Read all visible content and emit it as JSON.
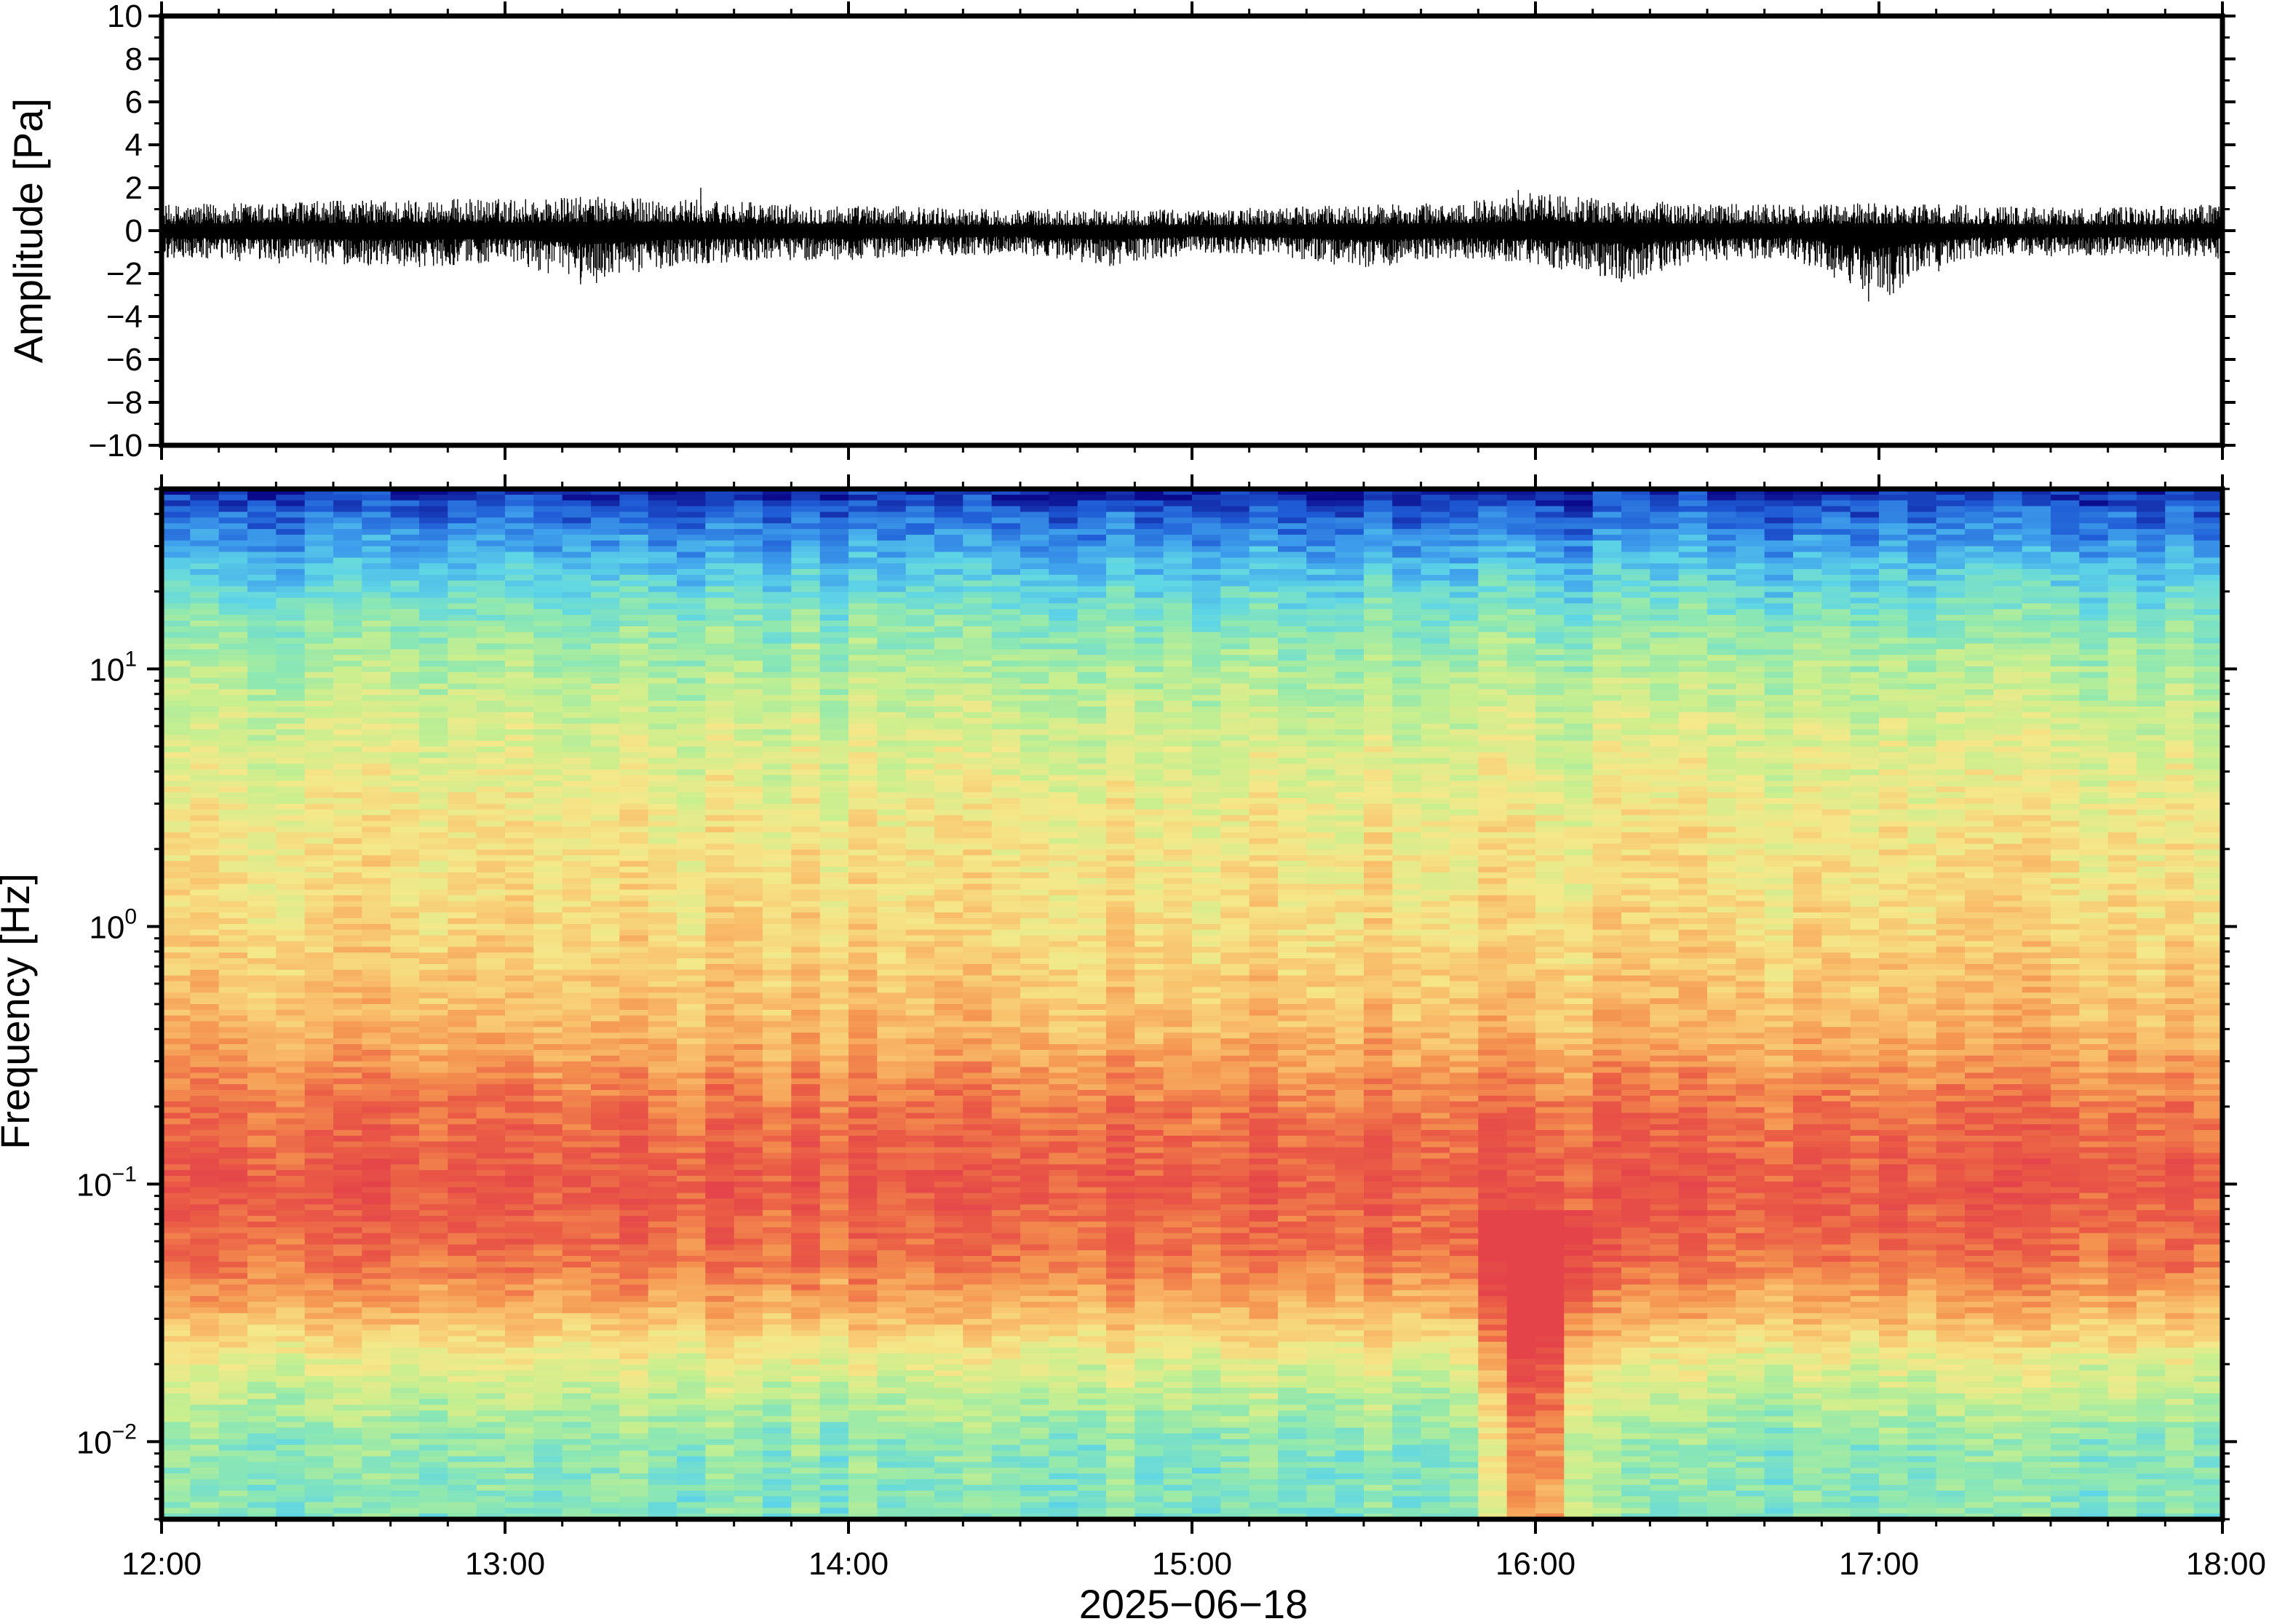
{
  "chart_data": [
    {
      "type": "line",
      "panel": "waveform",
      "ylabel": "Amplitude [Pa]",
      "xlabel": "",
      "ylim": [
        -10,
        10
      ],
      "y_ticks": [
        10,
        8,
        6,
        4,
        2,
        0,
        -2,
        -4,
        -6,
        -8,
        -10
      ],
      "y_tick_labels": [
        "10",
        "8",
        "6",
        "4",
        "2",
        "0",
        "−2",
        "−4",
        "−6",
        "−8",
        "−10"
      ],
      "xlim": [
        "12:00",
        "18:00"
      ],
      "series": [
        {
          "color": "#000000",
          "x_hours": [
            12.0,
            12.25,
            12.5,
            12.75,
            13.0,
            13.25,
            13.5,
            13.75,
            14.0,
            14.25,
            14.5,
            14.75,
            15.0,
            15.25,
            15.5,
            15.75,
            16.0,
            16.25,
            16.5,
            16.75,
            17.0,
            17.25,
            17.5,
            17.75,
            18.0
          ],
          "envelope_max": [
            1.2,
            1.3,
            1.4,
            1.5,
            1.5,
            1.6,
            1.5,
            1.3,
            1.2,
            1.1,
            1.0,
            1.0,
            1.0,
            1.1,
            1.2,
            1.3,
            1.8,
            1.4,
            1.3,
            1.2,
            1.3,
            1.2,
            1.1,
            1.1,
            1.3
          ],
          "envelope_min": [
            -1.3,
            -1.5,
            -1.6,
            -1.7,
            -1.5,
            -2.5,
            -1.6,
            -1.4,
            -1.4,
            -1.2,
            -1.1,
            -1.7,
            -1.1,
            -1.2,
            -1.8,
            -1.3,
            -1.6,
            -2.4,
            -1.4,
            -1.3,
            -3.3,
            -1.3,
            -1.2,
            -1.2,
            -1.4
          ]
        }
      ],
      "grid": false
    },
    {
      "type": "heatmap",
      "panel": "spectrogram",
      "ylabel": "Frequency [Hz]",
      "xlabel": "2025−06−18",
      "y_scale": "log",
      "ylim": [
        0.005,
        50
      ],
      "y_ticks": [
        0.01,
        0.1,
        1,
        10
      ],
      "y_tick_labels": [
        {
          "base": "10",
          "exp": "−2"
        },
        {
          "base": "10",
          "exp": "−1"
        },
        {
          "base": "10",
          "exp": "0"
        },
        {
          "base": "10",
          "exp": "1"
        }
      ],
      "x_ticks": [
        "12:00",
        "13:00",
        "14:00",
        "15:00",
        "16:00",
        "17:00",
        "18:00"
      ],
      "colormap": [
        "#0a0a8c",
        "#1f5cd6",
        "#3fa0ec",
        "#5fd6e6",
        "#8ee8b0",
        "#c9ef8e",
        "#f5e88a",
        "#f9c06c",
        "#f4914f",
        "#ea5a45",
        "#e4434a"
      ],
      "freq_profile": {
        "log10_hz": [
          -2.3,
          -2.0,
          -1.7,
          -1.5,
          -1.3,
          -1.0,
          -0.7,
          -0.4,
          0.0,
          0.4,
          0.8,
          1.0,
          1.2,
          1.4,
          1.6,
          1.7
        ],
        "level": [
          0.38,
          0.4,
          0.55,
          0.72,
          0.85,
          0.92,
          0.85,
          0.72,
          0.64,
          0.6,
          0.52,
          0.46,
          0.38,
          0.26,
          0.12,
          0.03
        ]
      },
      "notable": "stronger low-frequency energy around 16:00",
      "grid": false
    }
  ]
}
